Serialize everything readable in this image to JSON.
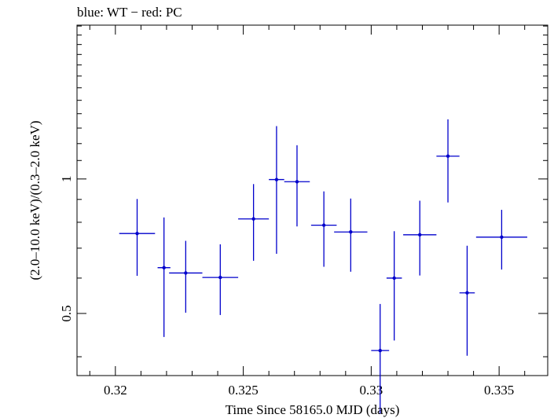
{
  "chart_data": {
    "type": "scatter",
    "title": "blue: WT − red: PC",
    "xlabel": "Time Since 58165.0 MJD (days)",
    "ylabel": "(2.0–10.0 keV)/(0.3–2.0 keV)",
    "xlim": [
      0.3185,
      0.3369
    ],
    "ylim": [
      0.363,
      2.21
    ],
    "yscale": "log",
    "x_ticks": [
      0.32,
      0.325,
      0.33,
      0.335
    ],
    "x_tick_labels": [
      "0.32",
      "0.325",
      "0.33",
      "0.335"
    ],
    "y_ticks": [
      0.5,
      1
    ],
    "y_tick_labels": [
      "0.5",
      "1"
    ],
    "grid": false,
    "series": [
      {
        "color": "#0000cc",
        "points": [
          {
            "x": 0.32085,
            "y": 0.755,
            "xerr": 0.0007,
            "ylo": 0.607,
            "yhi": 0.902
          },
          {
            "x": 0.3219,
            "y": 0.633,
            "xerr": 0.00025,
            "ylo": 0.443,
            "yhi": 0.82
          },
          {
            "x": 0.32275,
            "y": 0.616,
            "xerr": 0.00065,
            "ylo": 0.502,
            "yhi": 0.727
          },
          {
            "x": 0.3241,
            "y": 0.602,
            "xerr": 0.0007,
            "ylo": 0.496,
            "yhi": 0.714
          },
          {
            "x": 0.3254,
            "y": 0.814,
            "xerr": 0.0006,
            "ylo": 0.656,
            "yhi": 0.974
          },
          {
            "x": 0.3263,
            "y": 0.997,
            "xerr": 0.0003,
            "ylo": 0.68,
            "yhi": 1.313
          },
          {
            "x": 0.3271,
            "y": 0.986,
            "xerr": 0.0005,
            "ylo": 0.783,
            "yhi": 1.19
          },
          {
            "x": 0.32815,
            "y": 0.788,
            "xerr": 0.0005,
            "ylo": 0.636,
            "yhi": 0.938
          },
          {
            "x": 0.3292,
            "y": 0.761,
            "xerr": 0.00065,
            "ylo": 0.62,
            "yhi": 0.904
          },
          {
            "x": 0.33035,
            "y": 0.413,
            "xerr": 0.00035,
            "ylo": 0.298,
            "yhi": 0.525
          },
          {
            "x": 0.3309,
            "y": 0.6,
            "xerr": 0.0003,
            "ylo": 0.435,
            "yhi": 0.764
          },
          {
            "x": 0.3319,
            "y": 0.75,
            "xerr": 0.00065,
            "ylo": 0.608,
            "yhi": 0.894
          },
          {
            "x": 0.333,
            "y": 1.125,
            "xerr": 0.00045,
            "ylo": 0.886,
            "yhi": 1.36
          },
          {
            "x": 0.33375,
            "y": 0.556,
            "xerr": 0.0003,
            "ylo": 0.402,
            "yhi": 0.709
          },
          {
            "x": 0.3351,
            "y": 0.741,
            "xerr": 0.001,
            "ylo": 0.627,
            "yhi": 0.853
          }
        ]
      }
    ]
  }
}
